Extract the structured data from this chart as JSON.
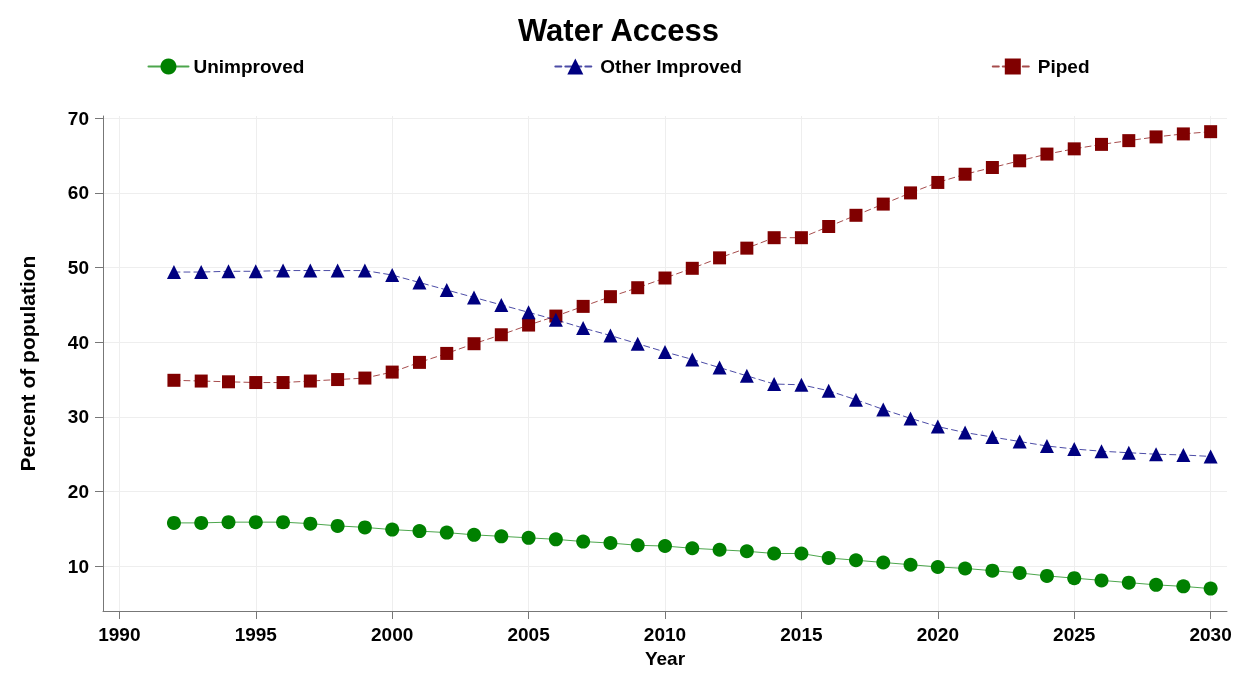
{
  "chart_data": {
    "type": "line",
    "title": "Water Access",
    "xlabel": "Year",
    "ylabel": "Percent of population",
    "x": [
      1992,
      1993,
      1994,
      1995,
      1996,
      1997,
      1998,
      1999,
      2000,
      2001,
      2002,
      2003,
      2004,
      2005,
      2006,
      2007,
      2008,
      2009,
      2010,
      2011,
      2012,
      2013,
      2014,
      2015,
      2016,
      2017,
      2018,
      2019,
      2020,
      2021,
      2022,
      2023,
      2024,
      2025,
      2026,
      2027,
      2028,
      2029,
      2030
    ],
    "xlim": [
      1989.4,
      2030.6
    ],
    "xticks": [
      1990,
      1995,
      2000,
      2005,
      2010,
      2015,
      2020,
      2025,
      2030
    ],
    "ylim": [
      4,
      70.3
    ],
    "yticks": [
      10,
      20,
      30,
      40,
      50,
      60,
      70
    ],
    "grid": true,
    "legend": "top",
    "series": [
      {
        "name": "Unimproved",
        "color": "#008000",
        "marker": "circle",
        "line_style": "solid",
        "values": [
          15.8,
          15.8,
          15.9,
          15.9,
          15.9,
          15.7,
          15.4,
          15.2,
          14.9,
          14.7,
          14.5,
          14.2,
          14.0,
          13.8,
          13.6,
          13.3,
          13.1,
          12.8,
          12.7,
          12.4,
          12.2,
          12.0,
          11.7,
          11.7,
          11.1,
          10.8,
          10.5,
          10.2,
          9.9,
          9.7,
          9.4,
          9.1,
          8.7,
          8.4,
          8.1,
          7.8,
          7.5,
          7.3,
          7.0
        ]
      },
      {
        "name": "Other Improved",
        "color": "#000080",
        "marker": "triangle",
        "line_style": "dashed",
        "values": [
          49.4,
          49.4,
          49.5,
          49.5,
          49.6,
          49.6,
          49.6,
          49.6,
          49.0,
          48.0,
          47.0,
          46.0,
          45.0,
          44.0,
          43.0,
          41.9,
          40.9,
          39.8,
          38.7,
          37.7,
          36.6,
          35.5,
          34.4,
          34.3,
          33.5,
          32.3,
          31.0,
          29.8,
          28.7,
          27.9,
          27.3,
          26.7,
          26.1,
          25.7,
          25.4,
          25.2,
          25.0,
          24.9,
          24.7
        ]
      },
      {
        "name": "Piped",
        "color": "#800000",
        "marker": "square",
        "line_style": "dashed",
        "values": [
          34.9,
          34.8,
          34.7,
          34.6,
          34.6,
          34.8,
          35.0,
          35.2,
          36.0,
          37.3,
          38.5,
          39.8,
          41.0,
          42.3,
          43.5,
          44.8,
          46.1,
          47.3,
          48.6,
          49.9,
          51.3,
          52.6,
          54.0,
          54.0,
          55.5,
          57.0,
          58.5,
          60.0,
          61.4,
          62.5,
          63.4,
          64.3,
          65.2,
          65.9,
          66.5,
          67.0,
          67.5,
          67.9,
          68.2
        ]
      }
    ]
  }
}
